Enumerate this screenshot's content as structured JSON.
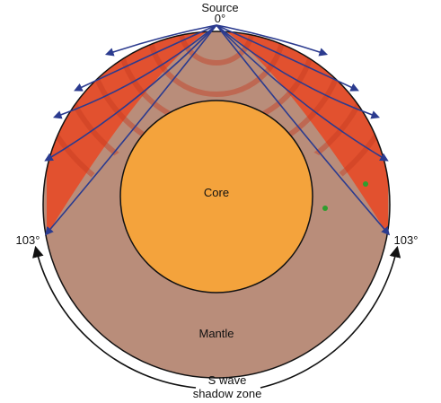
{
  "labels": {
    "source": "Source",
    "source_degree": "0°",
    "left_angle": "103°",
    "right_angle": "103°",
    "core": "Core",
    "mantle": "Mantle",
    "shadow_zone_line1": "S wave",
    "shadow_zone_line2": "shadow zone"
  },
  "colors": {
    "mantle": "#b98d7a",
    "hot_zone": "#e2512f",
    "core": "#f4a33c",
    "rays": "#2b3b8f",
    "outline": "#111111",
    "dots": "#2e9e2e"
  }
}
